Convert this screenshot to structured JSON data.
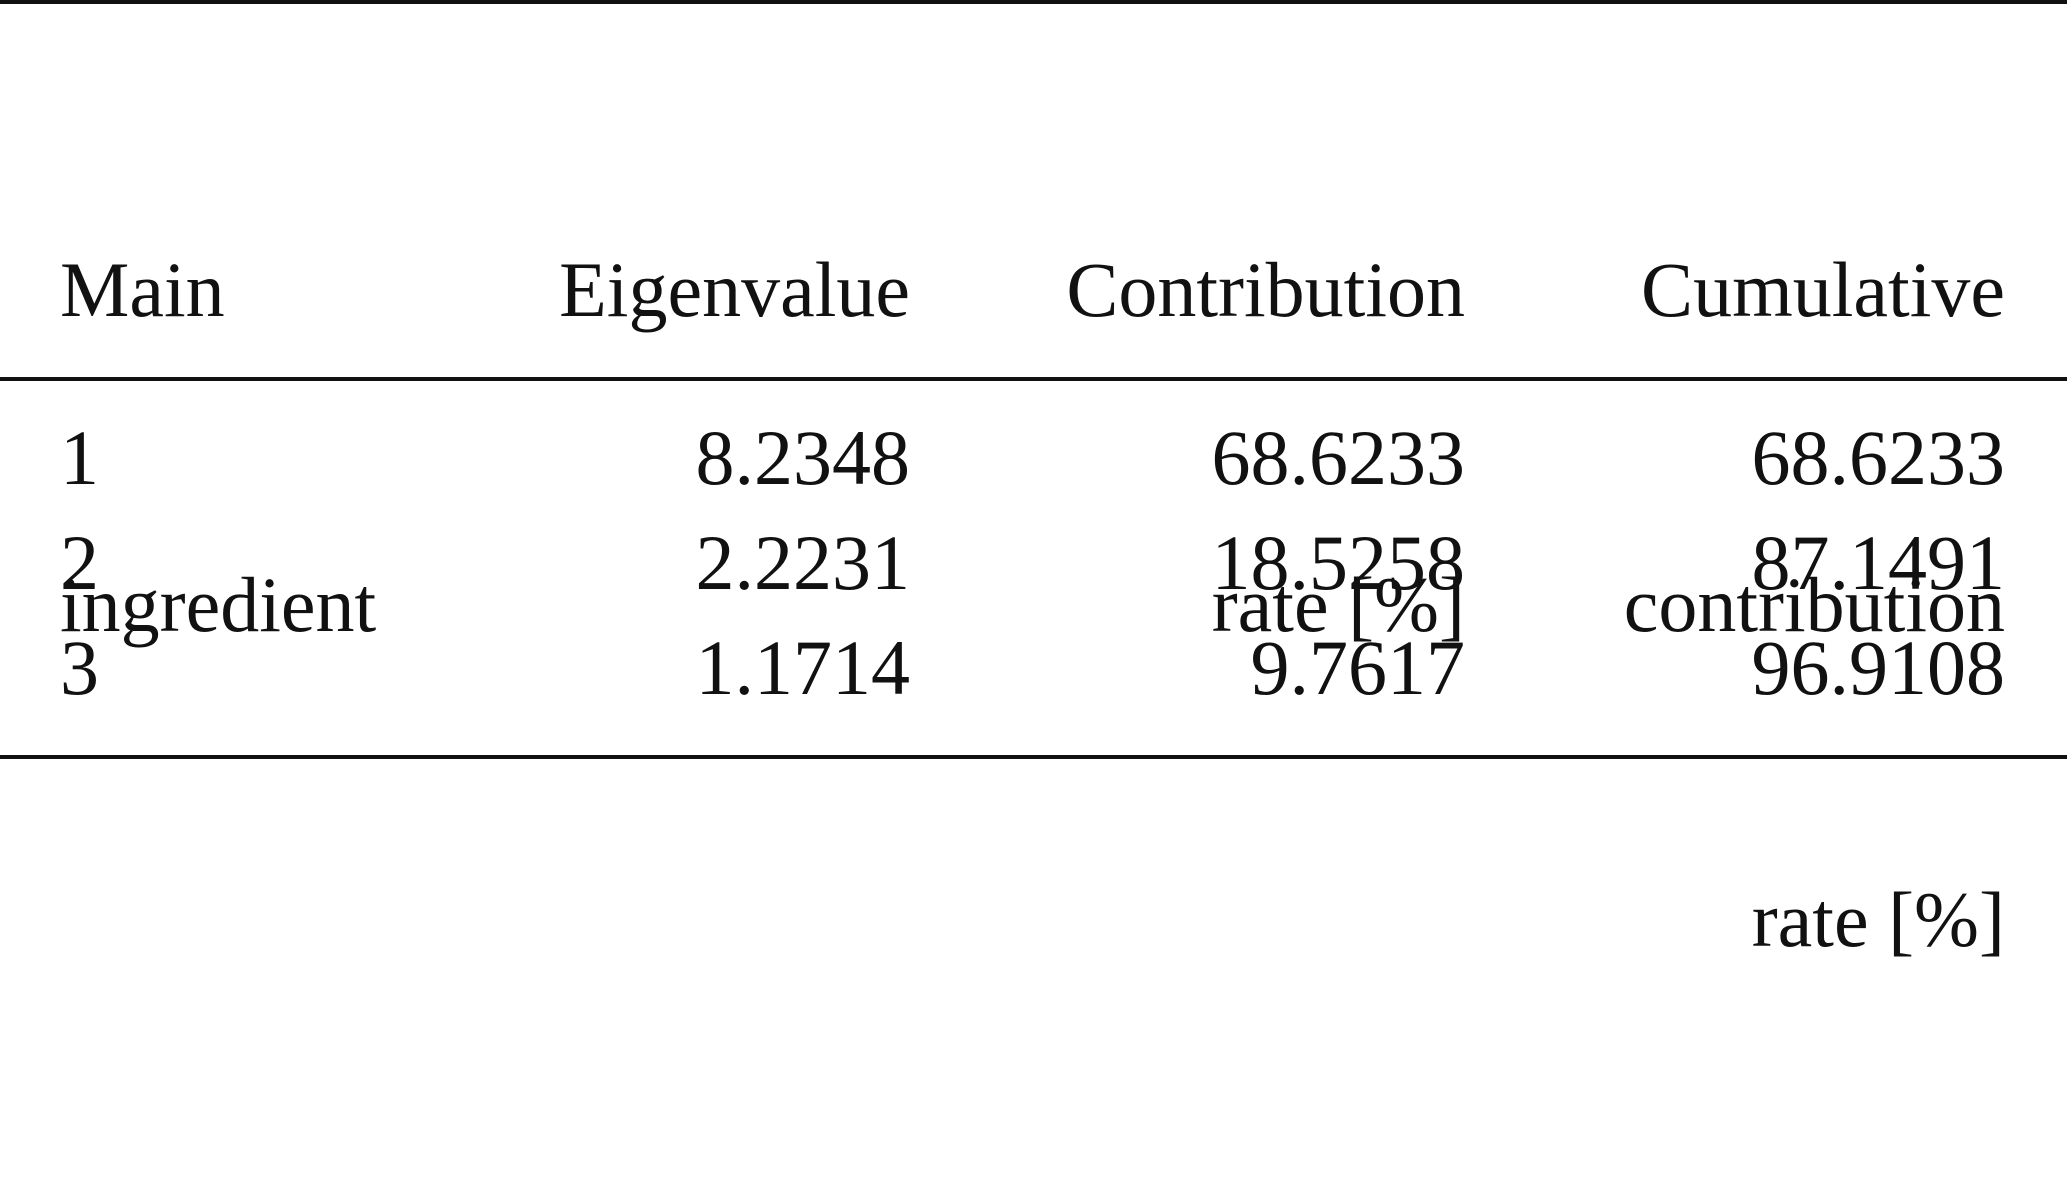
{
  "table": {
    "headers": [
      {
        "lines": [
          "Main",
          "ingredient"
        ]
      },
      {
        "lines": [
          "Eigenvalue"
        ]
      },
      {
        "lines": [
          "Contribution",
          "rate [%]"
        ]
      },
      {
        "lines": [
          "Cumulative",
          "contribution",
          "rate [%]"
        ]
      }
    ],
    "rows": [
      [
        "1",
        "8.2348",
        "68.6233",
        "68.6233"
      ],
      [
        "2",
        "2.2231",
        "18.5258",
        "87.1491"
      ],
      [
        "3",
        "1.1714",
        "9.7617",
        "96.9108"
      ]
    ]
  }
}
